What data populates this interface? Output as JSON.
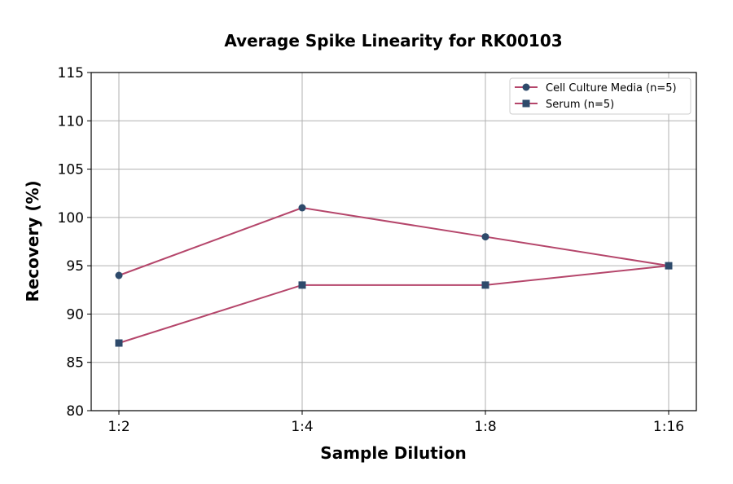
{
  "chart_data": {
    "type": "line",
    "title": "Average Spike Linearity for RK00103",
    "xlabel": "Sample Dilution",
    "ylabel": "Recovery (%)",
    "categories": [
      "1:2",
      "1:4",
      "1:8",
      "1:16"
    ],
    "ylim": [
      80,
      115
    ],
    "yticks": [
      80,
      85,
      90,
      95,
      100,
      105,
      110,
      115
    ],
    "grid": true,
    "legend_position": "top-right",
    "line_color": "#b5466b",
    "marker_color": "#2e4a6b",
    "series": [
      {
        "name": "Cell Culture Media (n=5)",
        "marker": "circle",
        "values": [
          94,
          101,
          98,
          95
        ]
      },
      {
        "name": "Serum (n=5)",
        "marker": "square",
        "values": [
          87,
          93,
          93,
          95
        ]
      }
    ]
  }
}
